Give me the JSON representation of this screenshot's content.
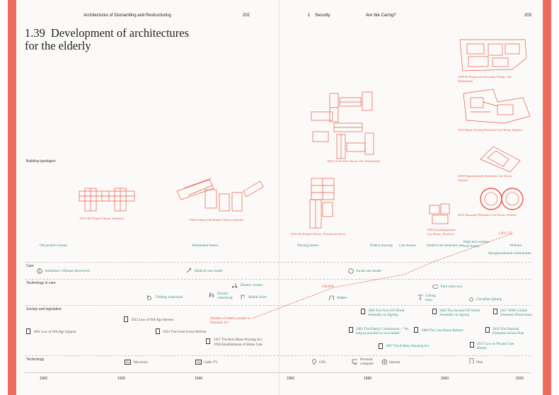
{
  "header": {
    "left_title": "Architectures of Dismantling and Restructuring",
    "left_page": "202",
    "chapter_num": "1",
    "chapter_name": "Security",
    "right_title": "Are We Caring?",
    "right_page": "203"
  },
  "title": {
    "number": "1.39",
    "line1": "Development of architectures",
    "line2": "for the elderly"
  },
  "sections": {
    "building_typologies": "Building typologies",
    "care": "Care",
    "technology_in_care": "Technology in care",
    "society": "Society and legislation",
    "technology": "Technology"
  },
  "buildings": [
    "1955 Old People's Home, Holstebro",
    "1946 Solbjerg Old People's Home, Gentofte",
    "1964–74 De Drie Hoven, The Netherlands",
    "1958 Old People's Home, Thorshavde fabrej",
    "1998 Torsdahlsgaarden Care Home, Hvidovre",
    "2009 De Hogeweyk Dementia Village, The Netherlands",
    "2016 Haunt Nyvang Dementia Care Home, Randers",
    "2010 Dagmarsminde Dementia Care Home, Glumsø",
    "2016 Samsørtej Dementia Care Home, Sloftsik"
  ],
  "categories": [
    "Old people's homes",
    "Retirement homes",
    "Nursing homes",
    "Elderly housing",
    "Care homes",
    "Small-scale dementia care",
    "High-tech welfare care homes",
    "Wellness",
    "Intergenerational communities"
  ],
  "care": [
    "Alzheimer's Disease discovered",
    "Medical care model",
    "Social care model"
  ],
  "tech_care": [
    "Folding wheelchair",
    "Electric wheelchair",
    "Electric scooter",
    "Mobile hoist",
    "Walker",
    "Ceiling hoist",
    "Paro robot seal",
    "Circadian lighting"
  ],
  "society": [
    "1891 Law of Old Age Support",
    "1922 Law of Old Age Interest",
    "1933 The Great Social Reform",
    "1957 The Best Home Nursing Act",
    "1958 Establishment of Home Care",
    "1982 The First UN World Assembly on Ageing",
    "1982 The Elderly Commission – \"As long as possible in own homes\"",
    "1987 The Elderly Housing Act",
    "1988 The Care Home Reform",
    "2002 The Second UN World Assembly on Ageing",
    "2017 WHO Global Dementia Observatory",
    "2016 The National Dementia Action Plan",
    "2017 Law on Private Care Homes"
  ],
  "elderly_note": "Number of elderly people in Denmark 65+",
  "elderly_values": [
    "348,000",
    "1,901,750"
  ],
  "technology": [
    "Television",
    "Cable TV",
    "GPS",
    "Personal computer",
    "Internet",
    "iPad"
  ],
  "axis_years": [
    "1900",
    "1920",
    "1940",
    "1960",
    "1980",
    "2000",
    "2020"
  ],
  "colors": {
    "accent_red": "#e5594a",
    "teal": "#2f8f8b",
    "frame": "#ef6b5c"
  },
  "chart_data": {
    "type": "line",
    "title": "Number of elderly people in Denmark 65+",
    "series": [
      {
        "name": "Number of elderly people in Denmark 65+",
        "x": [
          1960,
          2023
        ],
        "values": [
          348000,
          1901750
        ]
      }
    ]
  }
}
